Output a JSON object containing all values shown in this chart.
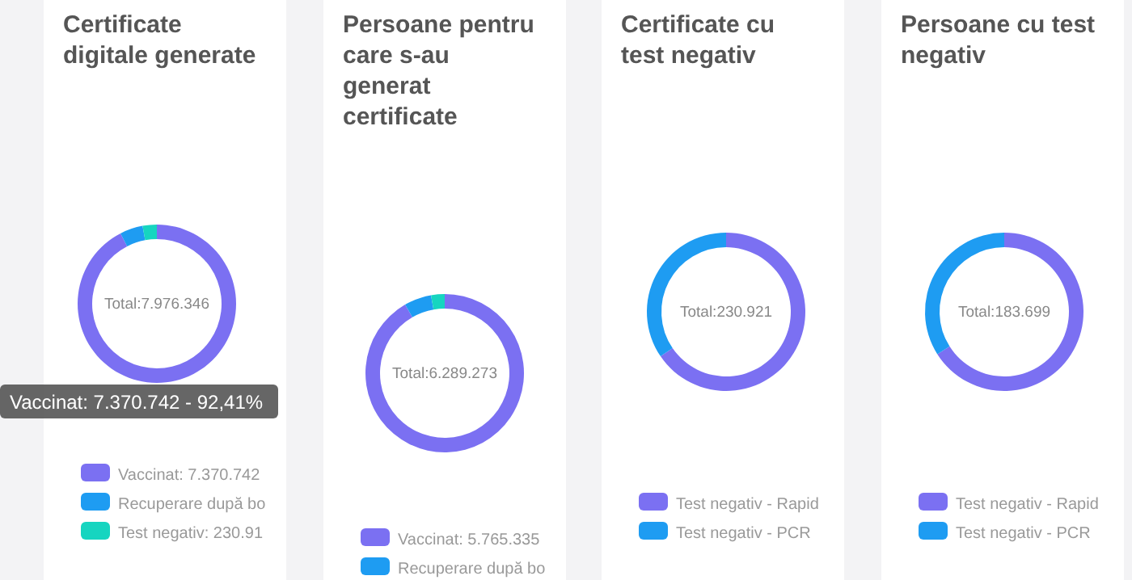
{
  "chart_data": [
    {
      "type": "donut",
      "title": "Certificate digitale generate",
      "categories": [
        "Vaccinat",
        "Recuperare după bo",
        "Test negativ: 230.91"
      ],
      "values": [
        7370742,
        374690,
        230914
      ],
      "value_labels": [
        "7.370.742",
        null,
        null
      ],
      "colors": [
        "#7b70f2",
        "#1e9cf2",
        "#16d5c0"
      ],
      "legend": "bottom",
      "annotations": [
        "Total:7.976.346",
        "Vaccinat: 7.370.742 - 92,41%"
      ]
    },
    {
      "type": "donut",
      "title": "Persoane pentru care s-au generat certificate",
      "categories": [
        "Vaccinat",
        "Recuperare după bo",
        null
      ],
      "values": [
        5765335,
        350000,
        173938
      ],
      "value_labels": [
        "5.765.335",
        null,
        null
      ],
      "colors": [
        "#7b70f2",
        "#1e9cf2",
        "#16d5c0"
      ],
      "legend": "bottom",
      "annotations": [
        "Total:6.289.273"
      ]
    },
    {
      "type": "donut",
      "title": "Certificate cu test negativ",
      "categories": [
        "Test negativ - Rapid",
        "Test negativ - PCR"
      ],
      "values": [
        65.5,
        34.5
      ],
      "colors": [
        "#7b70f2",
        "#1e9cf2"
      ],
      "legend": "bottom",
      "annotations": [
        "Total:230.921"
      ]
    },
    {
      "type": "donut",
      "title": "Persoane cu test negativ",
      "categories": [
        "Test negativ - Rapid",
        "Test negativ - PCR"
      ],
      "values": [
        66,
        34
      ],
      "colors": [
        "#7b70f2",
        "#1e9cf2"
      ],
      "legend": "bottom",
      "annotations": [
        "Total:183.699"
      ]
    }
  ]
}
